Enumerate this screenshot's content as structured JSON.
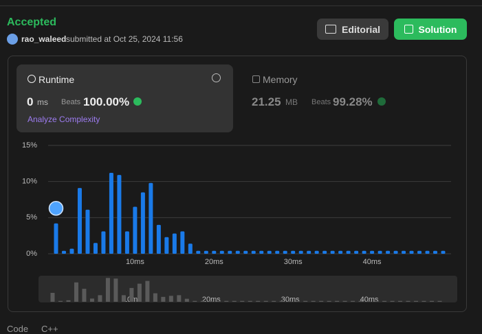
{
  "header": {
    "status": "Accepted",
    "user": "rao_waleed",
    "submitted": "submitted at Oct 25, 2024 11:56",
    "buttons": [
      "Editorial",
      "Solution"
    ]
  },
  "runtime": {
    "title": "Runtime",
    "value": "0",
    "unit": "ms",
    "beats_label": "Beats",
    "beats": "100.00%",
    "analyze": "Analyze Complexity"
  },
  "memory": {
    "title": "Memory",
    "value": "21.25",
    "unit": "MB",
    "beats_label": "Beats",
    "beats": "99.28%"
  },
  "footer": {
    "code": "Code",
    "lang": "C++"
  },
  "chart_data": {
    "type": "bar",
    "color": "#1a7ae8",
    "highlight_color": "#4ea3ff",
    "overview_color": "#5a5a5a",
    "grid": true,
    "x": [
      0,
      1,
      2,
      3,
      4,
      5,
      6,
      7,
      8,
      9,
      10,
      11,
      12,
      13,
      14,
      15,
      16,
      17,
      18,
      19,
      20,
      21,
      22,
      23,
      24,
      25,
      26,
      27,
      28,
      29,
      30,
      31,
      32,
      33,
      34,
      35,
      36,
      37,
      38,
      39,
      40,
      41,
      42,
      43,
      44,
      45,
      46,
      47,
      48,
      49
    ],
    "values": [
      4.2,
      0.4,
      0.7,
      9.1,
      6.1,
      1.5,
      3.1,
      11.2,
      10.9,
      3.1,
      6.5,
      8.5,
      9.8,
      4.0,
      2.3,
      2.8,
      3.1,
      1.4,
      0.4,
      0.4,
      0.4,
      0.4,
      0.4,
      0.4,
      0.4,
      0.4,
      0.4,
      0.4,
      0.4,
      0.4,
      0.4,
      0.4,
      0.4,
      0.4,
      0.4,
      0.4,
      0.4,
      0.4,
      0.4,
      0.4,
      0.4,
      0.4,
      0.4,
      0.4,
      0.4,
      0.4,
      0.4,
      0.4,
      0.4,
      0.4
    ],
    "xlim": [
      -1,
      50
    ],
    "xticks": [
      {
        "value": 10,
        "label": "10ms"
      },
      {
        "value": 20,
        "label": "20ms"
      },
      {
        "value": 30,
        "label": "30ms"
      },
      {
        "value": 40,
        "label": "40ms"
      }
    ],
    "ylim": [
      0,
      15
    ],
    "yticks": [
      {
        "value": 0,
        "label": "0%"
      },
      {
        "value": 5,
        "label": "5%"
      },
      {
        "value": 10,
        "label": "10%"
      },
      {
        "value": 15,
        "label": "15%"
      }
    ]
  }
}
